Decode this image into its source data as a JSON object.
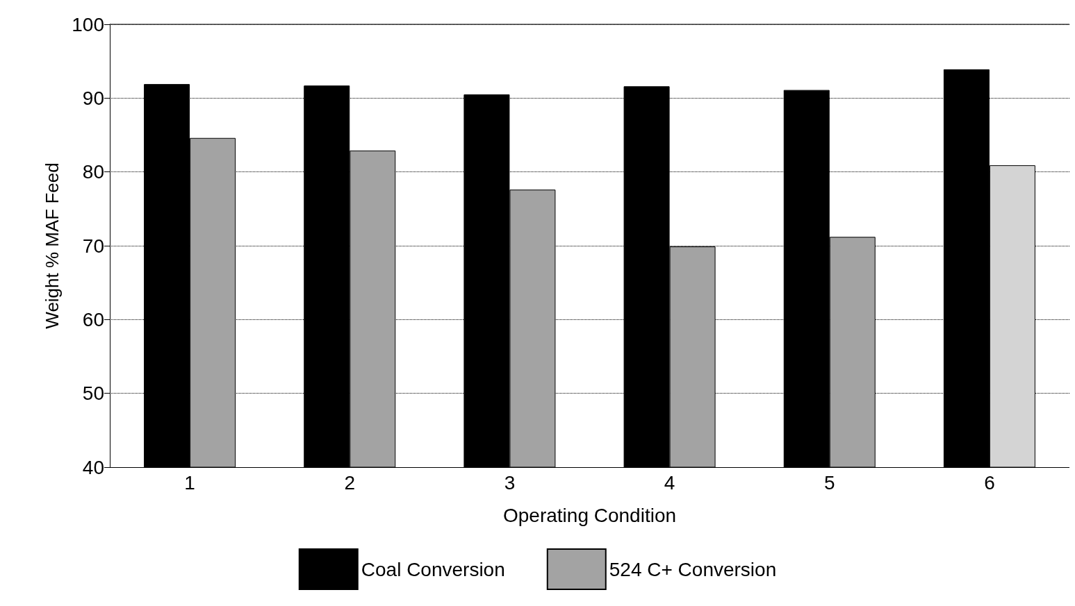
{
  "chart_data": {
    "type": "bar",
    "xlabel": "Operating Condition",
    "ylabel": "Weight % MAF Feed",
    "categories": [
      "1",
      "2",
      "3",
      "4",
      "5",
      "6"
    ],
    "series": [
      {
        "name": "Coal Conversion",
        "color": "#000000",
        "values": [
          91.9,
          91.7,
          90.5,
          91.6,
          91.1,
          93.9
        ]
      },
      {
        "name": "524 C+ Conversion",
        "color": "#a3a3a3",
        "colors": [
          "#a3a3a3",
          "#a3a3a3",
          "#a3a3a3",
          "#a3a3a3",
          "#a3a3a3",
          "#d4d4d4"
        ],
        "values": [
          84.6,
          82.9,
          77.6,
          69.9,
          71.2,
          80.9
        ]
      }
    ],
    "ylim": [
      40,
      100
    ],
    "yticks": [
      40,
      50,
      60,
      70,
      80,
      90,
      100
    ],
    "grid": "y",
    "line_style": "dotted",
    "legend": "bottom"
  }
}
